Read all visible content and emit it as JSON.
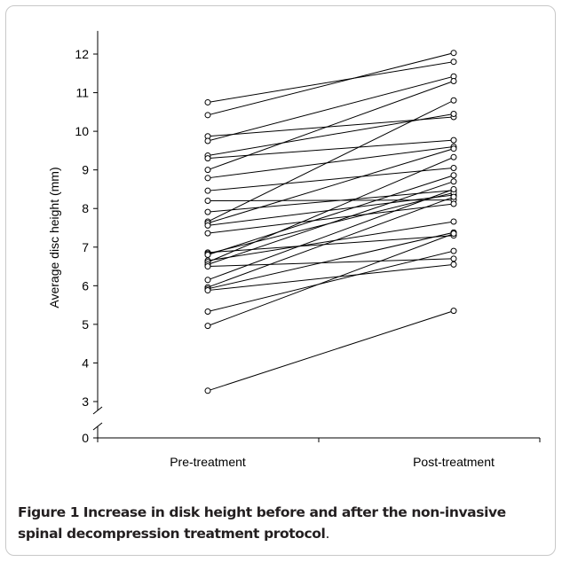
{
  "chart_data": {
    "type": "line",
    "title": "",
    "xlabel": "",
    "ylabel": "Average disc height (mm)",
    "categories": [
      "Pre-treatment",
      "Post-treatment"
    ],
    "yticks": [
      0,
      3,
      4,
      5,
      6,
      7,
      8,
      9,
      10,
      11,
      12
    ],
    "ylim": [
      0,
      12.6
    ],
    "axis_break": [
      0,
      3
    ],
    "grid": false,
    "legend": "none",
    "marker": "open-circle",
    "line_color": "#000000",
    "series": [
      {
        "values": [
          10.75,
          11.8
        ]
      },
      {
        "values": [
          10.42,
          12.03
        ]
      },
      {
        "values": [
          9.87,
          10.37
        ]
      },
      {
        "values": [
          9.75,
          11.42
        ]
      },
      {
        "values": [
          9.37,
          10.45
        ]
      },
      {
        "values": [
          9.3,
          9.77
        ]
      },
      {
        "values": [
          9.0,
          11.3
        ]
      },
      {
        "values": [
          8.79,
          9.6
        ]
      },
      {
        "values": [
          8.46,
          9.05
        ]
      },
      {
        "values": [
          8.2,
          8.22
        ]
      },
      {
        "values": [
          7.91,
          8.47
        ]
      },
      {
        "values": [
          7.66,
          10.8
        ]
      },
      {
        "values": [
          7.62,
          9.55
        ]
      },
      {
        "values": [
          7.56,
          8.35
        ]
      },
      {
        "values": [
          7.36,
          8.12
        ]
      },
      {
        "values": [
          6.86,
          7.3
        ]
      },
      {
        "values": [
          6.83,
          8.41
        ]
      },
      {
        "values": [
          6.8,
          8.86
        ]
      },
      {
        "values": [
          6.65,
          7.66
        ]
      },
      {
        "values": [
          6.61,
          9.33
        ]
      },
      {
        "values": [
          6.55,
          8.7
        ]
      },
      {
        "values": [
          6.5,
          6.7
        ]
      },
      {
        "values": [
          6.15,
          8.5
        ]
      },
      {
        "values": [
          5.96,
          8.3
        ]
      },
      {
        "values": [
          5.92,
          7.38
        ]
      },
      {
        "values": [
          5.88,
          6.55
        ]
      },
      {
        "values": [
          5.33,
          6.9
        ]
      },
      {
        "values": [
          4.96,
          7.35
        ]
      },
      {
        "values": [
          3.28,
          5.35
        ]
      }
    ]
  },
  "caption": {
    "label": "Figure 1",
    "title": "Increase in disk height before and after the non-invasive spinal decompression treatment protocol",
    "period": "."
  }
}
